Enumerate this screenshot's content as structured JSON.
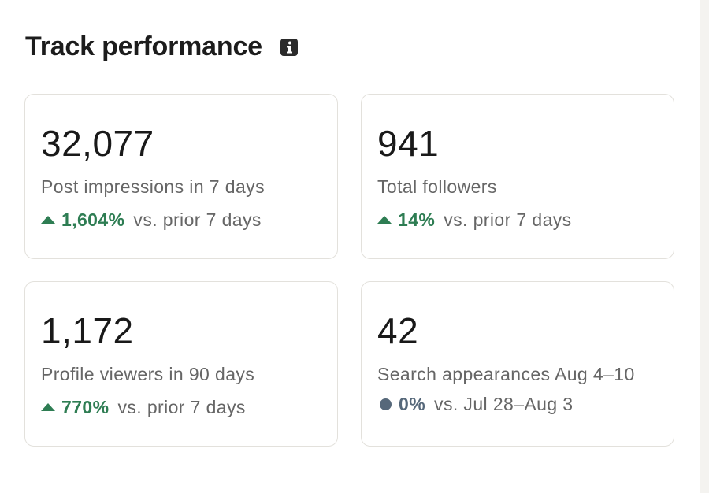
{
  "header": {
    "title": "Track performance",
    "info_icon": "info-icon"
  },
  "colors": {
    "positive": "#2e7d53",
    "neutral": "#56687a",
    "label": "#666666",
    "card_border": "#e3e1dc"
  },
  "cards": [
    {
      "value": "32,077",
      "label": "Post impressions in 7 days",
      "trend_icon": "arrow-up-icon",
      "change": "1,604%",
      "comparison": "vs. prior 7 days"
    },
    {
      "value": "941",
      "label": "Total followers",
      "trend_icon": "arrow-up-icon",
      "change": "14%",
      "comparison": "vs. prior 7 days"
    },
    {
      "value": "1,172",
      "label": "Profile viewers in 90 days",
      "trend_icon": "arrow-up-icon",
      "change": "770%",
      "comparison": "vs. prior 7 days"
    },
    {
      "value": "42",
      "label": "Search appearances Aug 4–10",
      "trend_icon": "neutral-dot-icon",
      "change": "0%",
      "comparison": "vs. Jul 28–Aug 3"
    }
  ]
}
